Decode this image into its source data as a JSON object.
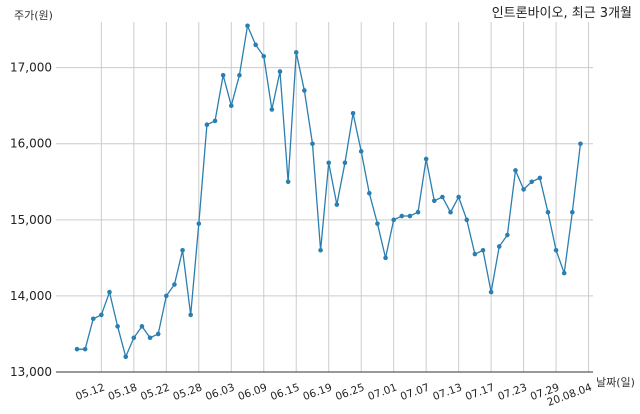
{
  "chart_data": {
    "type": "line",
    "title": "인트론바이오, 최근 3개월",
    "ylabel": "주가(원)",
    "xlabel": "날짜(일)",
    "ylim": [
      13000,
      17600
    ],
    "yticks": [
      13000,
      14000,
      15000,
      16000,
      17000
    ],
    "ytick_labels": [
      "13,000",
      "14,000",
      "15,000",
      "16,000",
      "17,000"
    ],
    "xtick_labels": [
      "05.12",
      "05.18",
      "05.22",
      "05.28",
      "06.03",
      "06.09",
      "06.15",
      "06.19",
      "06.25",
      "07.01",
      "07.07",
      "07.13",
      "07.17",
      "07.23",
      "07.29",
      "20.08.04"
    ],
    "xtick_index": [
      3,
      7,
      11,
      15,
      19,
      23,
      27,
      31,
      35,
      39,
      43,
      47,
      51,
      55,
      59,
      63
    ],
    "grid": true,
    "line_color": "#2a7fb0",
    "series": [
      {
        "values": [
          13300,
          13300,
          13700,
          13750,
          14050,
          13600,
          13200,
          13450,
          13600,
          13450,
          13500,
          14000,
          14150,
          14600,
          13750,
          14950,
          16250,
          16300,
          16900,
          16500,
          16900,
          17550,
          17300,
          17150,
          16450,
          16950,
          15500,
          17200,
          16700,
          16000,
          14600,
          15750,
          15200,
          15750,
          16400,
          15900,
          15350,
          14950,
          14500,
          15000,
          15050,
          15050,
          15100,
          15800,
          15250,
          15300,
          15100,
          15300,
          15000,
          14550,
          14600,
          14050,
          14650,
          14800,
          15650,
          15400,
          15500,
          15550,
          15100,
          14600,
          14300,
          15100,
          16000
        ]
      }
    ]
  }
}
